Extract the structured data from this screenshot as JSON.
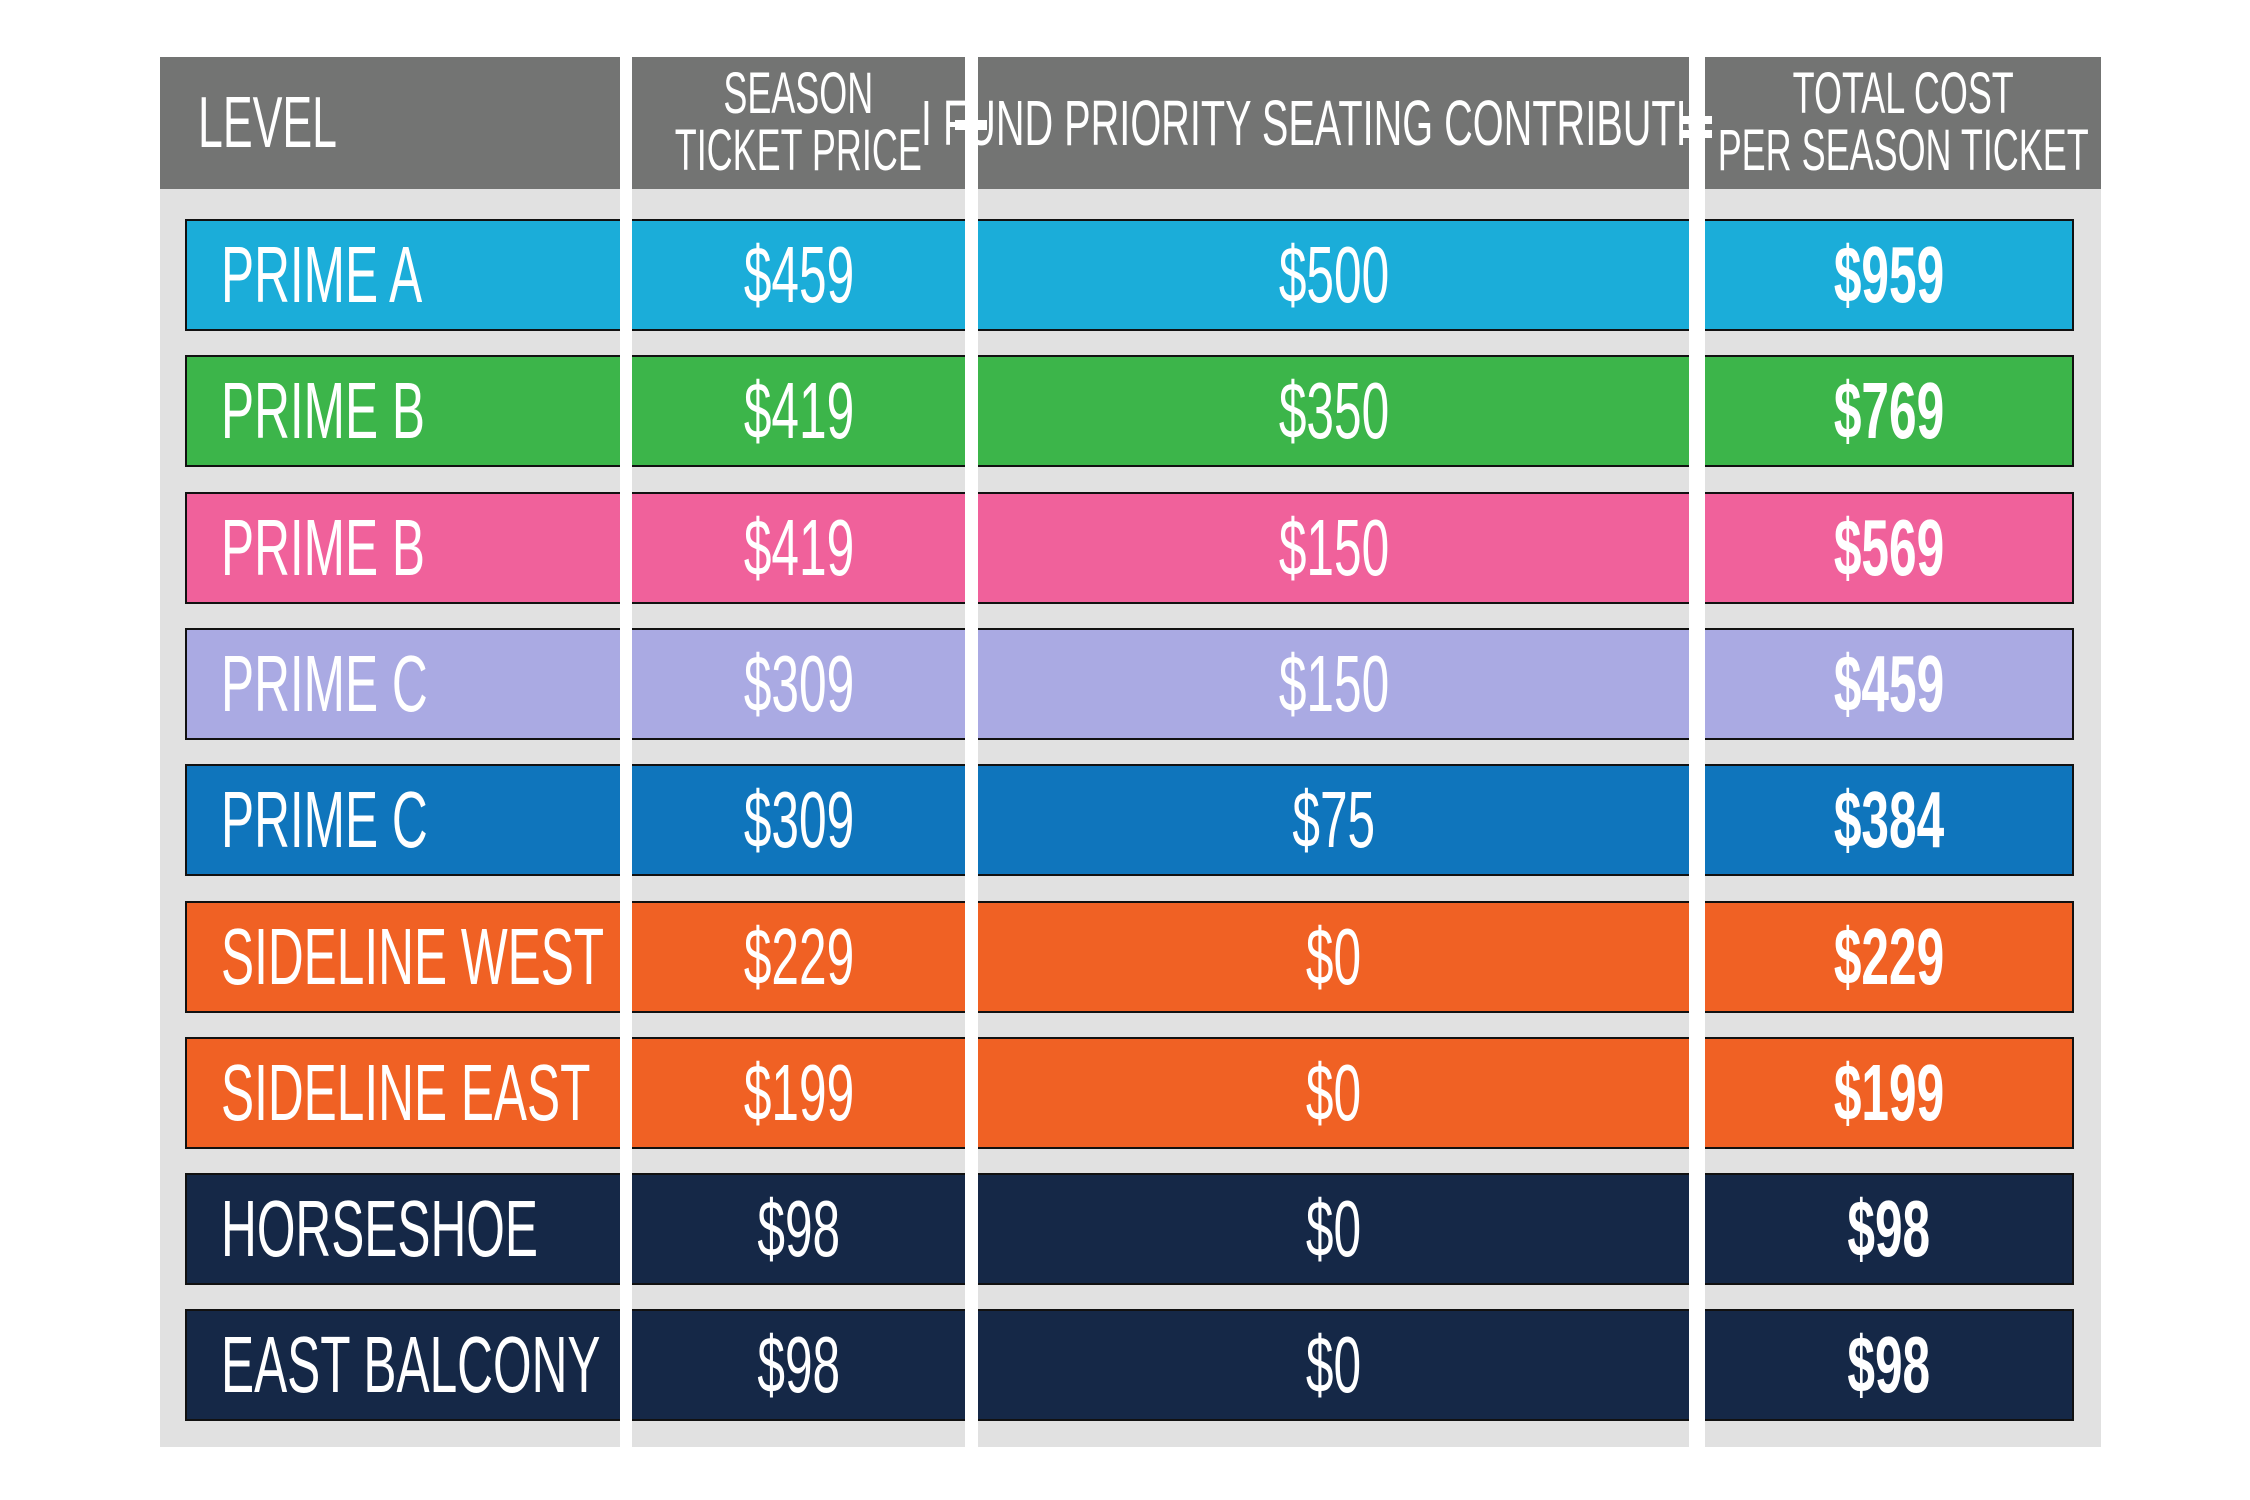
{
  "headers": {
    "level": "LEVEL",
    "season_ticket_price": [
      "SEASON",
      "TICKET PRICE"
    ],
    "contribution": "I FUND PRIORITY SEATING CONTRIBUTION",
    "total_cost": [
      "TOTAL COST",
      "PER SEASON TICKET"
    ],
    "plus_operator": "+",
    "equals_operator": "="
  },
  "rows": [
    {
      "level": "PRIME A",
      "price": "$459",
      "contribution": "$500",
      "total": "$959",
      "color": "#1badd9"
    },
    {
      "level": "PRIME B",
      "price": "$419",
      "contribution": "$350",
      "total": "$769",
      "color": "#3cb54a"
    },
    {
      "level": "PRIME B",
      "price": "$419",
      "contribution": "$150",
      "total": "$569",
      "color": "#f0619b"
    },
    {
      "level": "PRIME C",
      "price": "$309",
      "contribution": "$150",
      "total": "$459",
      "color": "#aaaae3"
    },
    {
      "level": "PRIME C",
      "price": "$309",
      "contribution": "$75",
      "total": "$384",
      "color": "#0f75bc"
    },
    {
      "level": "SIDELINE WEST",
      "price": "$229",
      "contribution": "$0",
      "total": "$229",
      "color": "#f06124"
    },
    {
      "level": "SIDELINE EAST",
      "price": "$199",
      "contribution": "$0",
      "total": "$199",
      "color": "#f06124"
    },
    {
      "level": "HORSESHOE",
      "price": "$98",
      "contribution": "$0",
      "total": "$98",
      "color": "#152847"
    },
    {
      "level": "EAST BALCONY",
      "price": "$98",
      "contribution": "$0",
      "total": "$98",
      "color": "#152847"
    }
  ],
  "colors": {
    "header_bg": "#737473",
    "panel_bg": "#e1e1e1"
  }
}
